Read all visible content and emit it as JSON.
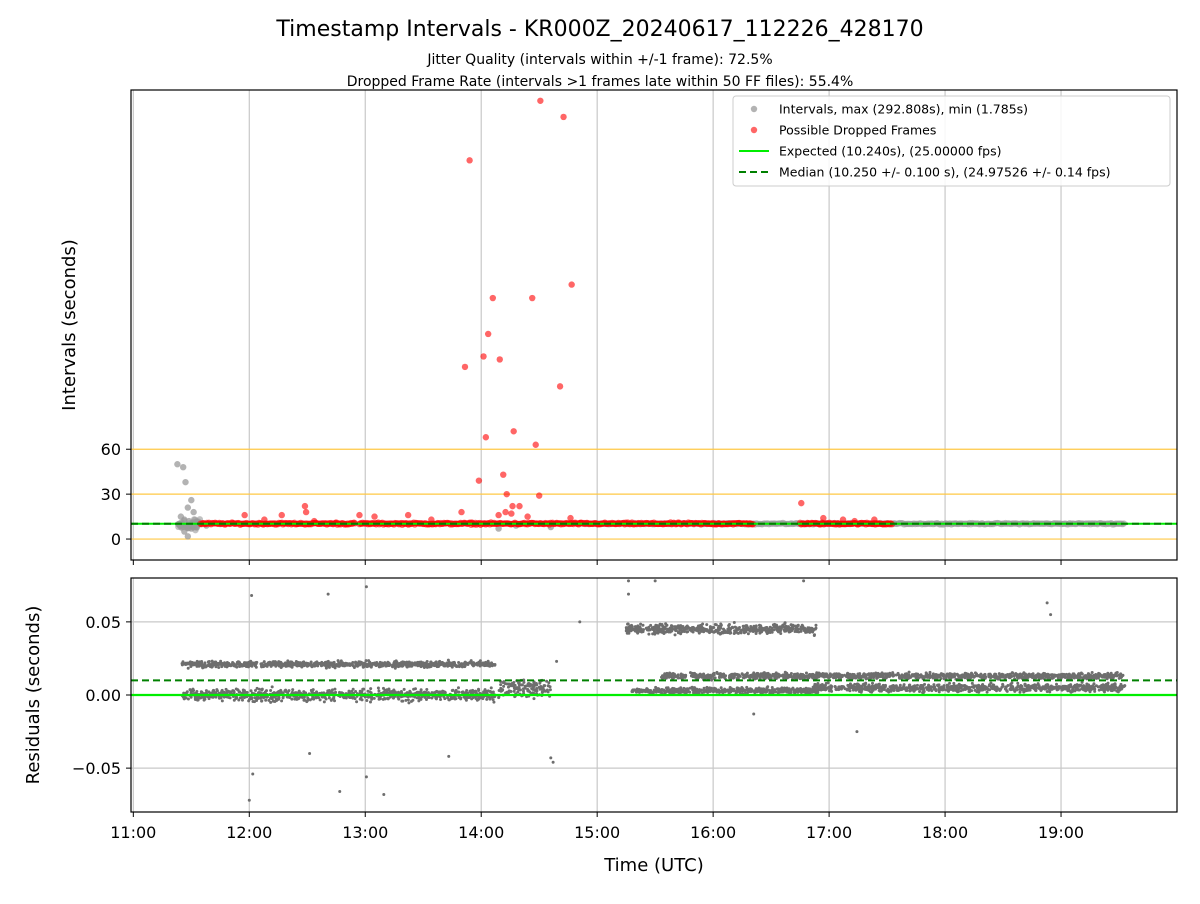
{
  "header": {
    "title": "Timestamp Intervals - KR000Z_20240617_112226_428170",
    "subtitle_1": "Jitter Quality (intervals within +/-1 frame): 72.5%",
    "subtitle_2": "Dropped Frame Rate (intervals >1 frames late within 50 FF files): 55.4%"
  },
  "colors": {
    "interval_points": "#999999",
    "dropped_points": "#ff0000",
    "expected_line": "#00ee00",
    "median_line": "#008000",
    "reference_lines": "#ffc845",
    "residual_points": "#6e6e6e",
    "grid": "#c8c8c8"
  },
  "chart_data": [
    {
      "type": "scatter",
      "title": "Timestamp Intervals - KR000Z_20240617_112226_428170",
      "ylabel": "Intervals (seconds)",
      "xlabel": "",
      "x_ticks": [
        "11:00",
        "12:00",
        "13:00",
        "14:00",
        "15:00",
        "16:00",
        "17:00",
        "18:00",
        "19:00"
      ],
      "y_ticks": [
        0,
        30,
        60
      ],
      "xlim_hours": [
        10.98,
        20.0
      ],
      "ylim": [
        -14,
        300
      ],
      "grid": "x",
      "legend_position": "upper right",
      "legend": [
        "Intervals, max (292.808s), min (1.785s)",
        "Possible Dropped Frames",
        "Expected (10.240s), (25.00000 fps)",
        "Median (10.250 +/- 0.100 s), (24.97526 +/- 0.14 fps)"
      ],
      "reference_lines": [
        0,
        30,
        60
      ],
      "expected_value": 10.24,
      "median_value": 10.25,
      "series": [
        {
          "name": "Intervals, max (292.808s), min (1.785s)",
          "points": [
            [
              11.38,
              50
            ],
            [
              11.43,
              48
            ],
            [
              11.45,
              38
            ],
            [
              11.5,
              26
            ],
            [
              11.47,
              21
            ],
            [
              11.52,
              18
            ],
            [
              11.41,
              15
            ],
            [
              11.44,
              13
            ],
            [
              11.48,
              12
            ],
            [
              11.4,
              10
            ],
            [
              11.46,
              9
            ],
            [
              11.42,
              8
            ],
            [
              11.5,
              7
            ],
            [
              11.44,
              5
            ],
            [
              11.47,
              1.8
            ],
            [
              11.53,
              11
            ],
            [
              11.58,
              10
            ],
            [
              11.63,
              9
            ],
            [
              11.75,
              10
            ],
            [
              14.15,
              7
            ],
            [
              14.3,
              9
            ],
            [
              14.6,
              8
            ]
          ],
          "note_dense_band": [
            [
              14.85,
              19.55,
              10.25
            ]
          ]
        },
        {
          "name": "Possible Dropped Frames",
          "points": [
            [
              11.96,
              16
            ],
            [
              12.13,
              13
            ],
            [
              12.28,
              16
            ],
            [
              12.48,
              22
            ],
            [
              12.49,
              18
            ],
            [
              12.56,
              12
            ],
            [
              12.75,
              11
            ],
            [
              12.95,
              16
            ],
            [
              13.08,
              15
            ],
            [
              13.37,
              16
            ],
            [
              13.57,
              13
            ],
            [
              13.83,
              18
            ],
            [
              13.92,
              11
            ],
            [
              14.15,
              16
            ],
            [
              14.27,
              22
            ],
            [
              14.77,
              14
            ],
            [
              16.76,
              24
            ],
            [
              16.95,
              14
            ],
            [
              17.12,
              13
            ],
            [
              17.22,
              12
            ],
            [
              17.39,
              13
            ],
            [
              14.51,
              292.8
            ],
            [
              14.71,
              282
            ],
            [
              13.9,
              253
            ],
            [
              14.78,
              170
            ],
            [
              14.1,
              161
            ],
            [
              14.44,
              161
            ],
            [
              14.06,
              137
            ],
            [
              14.02,
              122
            ],
            [
              14.16,
              120
            ],
            [
              13.86,
              115
            ],
            [
              14.68,
              102
            ],
            [
              14.04,
              68
            ],
            [
              14.28,
              72
            ],
            [
              14.47,
              63
            ],
            [
              13.98,
              39
            ],
            [
              14.19,
              43
            ],
            [
              14.22,
              30
            ],
            [
              14.5,
              29
            ],
            [
              14.21,
              18
            ],
            [
              14.26,
              17
            ],
            [
              14.33,
              22
            ],
            [
              14.4,
              15
            ]
          ],
          "dense_bands": [
            [
              11.58,
              12.92,
              10.3
            ],
            [
              12.95,
              14.85,
              10.3
            ],
            [
              14.85,
              16.35,
              10.3
            ],
            [
              16.75,
              17.55,
              10.3
            ]
          ]
        }
      ]
    },
    {
      "type": "scatter",
      "ylabel": "Residuals (seconds)",
      "xlabel": "Time (UTC)",
      "x_ticks": [
        "11:00",
        "12:00",
        "13:00",
        "14:00",
        "15:00",
        "16:00",
        "17:00",
        "18:00",
        "19:00"
      ],
      "y_ticks": [
        "0.05",
        "0.00",
        "−0.05"
      ],
      "y_tick_values": [
        0.05,
        0.0,
        -0.05
      ],
      "ylim": [
        -0.08,
        0.08
      ],
      "grid": "both",
      "expected_value": 0.0,
      "median_value": 0.01,
      "clusters": [
        {
          "x_range": [
            11.42,
            14.12
          ],
          "center": 0.0,
          "spread": 0.006
        },
        {
          "x_range": [
            11.42,
            14.12
          ],
          "center": 0.021,
          "spread": 0.003
        },
        {
          "x_range": [
            14.15,
            14.6
          ],
          "center": 0.005,
          "spread": 0.01
        },
        {
          "x_range": [
            15.25,
            16.9
          ],
          "center": 0.045,
          "spread": 0.005
        },
        {
          "x_range": [
            15.55,
            16.9
          ],
          "center": 0.013,
          "spread": 0.003
        },
        {
          "x_range": [
            15.3,
            16.9
          ],
          "center": 0.003,
          "spread": 0.003
        },
        {
          "x_range": [
            16.85,
            19.55
          ],
          "center": 0.005,
          "spread": 0.004
        },
        {
          "x_range": [
            16.85,
            19.55
          ],
          "center": 0.013,
          "spread": 0.003
        }
      ],
      "outliers": [
        [
          12.0,
          -0.072
        ],
        [
          12.02,
          0.068
        ],
        [
          12.03,
          -0.054
        ],
        [
          12.68,
          0.069
        ],
        [
          12.78,
          -0.066
        ],
        [
          13.01,
          0.074
        ],
        [
          13.01,
          -0.056
        ],
        [
          13.16,
          -0.068
        ],
        [
          14.62,
          -0.046
        ],
        [
          14.6,
          -0.043
        ],
        [
          14.65,
          0.023
        ],
        [
          14.85,
          0.05
        ],
        [
          15.27,
          0.078
        ],
        [
          15.27,
          0.069
        ],
        [
          15.5,
          0.078
        ],
        [
          16.78,
          0.078
        ],
        [
          18.88,
          0.063
        ],
        [
          18.91,
          0.055
        ],
        [
          16.35,
          -0.013
        ],
        [
          17.24,
          -0.025
        ],
        [
          13.72,
          -0.042
        ],
        [
          12.52,
          -0.04
        ]
      ]
    }
  ]
}
